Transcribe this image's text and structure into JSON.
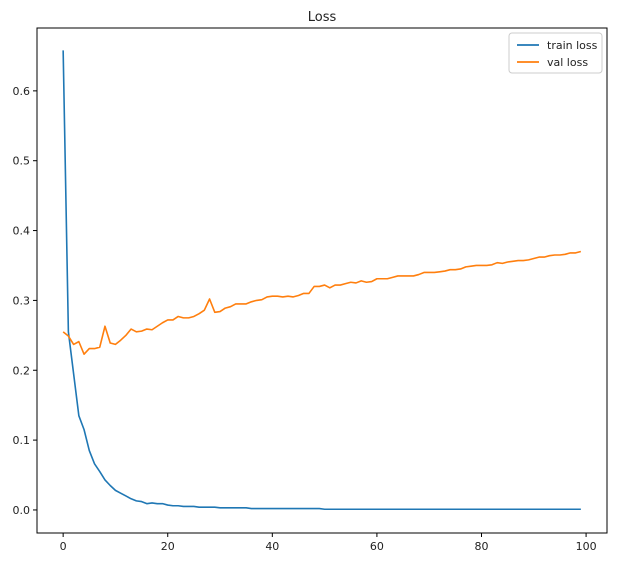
{
  "chart_data": {
    "type": "line",
    "title": "Loss",
    "xlabel": "",
    "ylabel": "",
    "xlim": [
      -5,
      104
    ],
    "ylim": [
      -0.033,
      0.69
    ],
    "xticks": [
      0,
      20,
      40,
      60,
      80,
      100
    ],
    "xtick_labels": [
      "0",
      "20",
      "40",
      "60",
      "80",
      "100"
    ],
    "yticks": [
      0.0,
      0.1,
      0.2,
      0.3,
      0.4,
      0.5,
      0.6
    ],
    "ytick_labels": [
      "0.0",
      "0.1",
      "0.2",
      "0.3",
      "0.4",
      "0.5",
      "0.6"
    ],
    "grid": false,
    "legend_position": "top-right",
    "series": [
      {
        "name": "train loss",
        "color": "#1f77b4",
        "x": [
          0,
          1,
          2,
          3,
          4,
          5,
          6,
          7,
          8,
          9,
          10,
          11,
          12,
          13,
          14,
          15,
          16,
          17,
          18,
          19,
          20,
          21,
          22,
          23,
          24,
          25,
          26,
          27,
          28,
          29,
          30,
          31,
          32,
          33,
          34,
          35,
          36,
          37,
          38,
          39,
          40,
          41,
          42,
          43,
          44,
          45,
          46,
          47,
          48,
          49,
          50,
          51,
          52,
          53,
          54,
          55,
          56,
          57,
          58,
          59,
          60,
          61,
          62,
          63,
          64,
          65,
          66,
          67,
          68,
          69,
          70,
          71,
          72,
          73,
          74,
          75,
          76,
          77,
          78,
          79,
          80,
          81,
          82,
          83,
          84,
          85,
          86,
          87,
          88,
          89,
          90,
          91,
          92,
          93,
          94,
          95,
          96,
          97,
          98,
          99
        ],
        "values": [
          0.658,
          0.255,
          0.195,
          0.135,
          0.115,
          0.085,
          0.066,
          0.055,
          0.043,
          0.035,
          0.028,
          0.024,
          0.02,
          0.016,
          0.013,
          0.012,
          0.009,
          0.01,
          0.009,
          0.009,
          0.007,
          0.006,
          0.006,
          0.005,
          0.005,
          0.005,
          0.004,
          0.004,
          0.004,
          0.004,
          0.003,
          0.003,
          0.003,
          0.003,
          0.003,
          0.003,
          0.002,
          0.002,
          0.002,
          0.002,
          0.002,
          0.002,
          0.002,
          0.002,
          0.002,
          0.002,
          0.002,
          0.002,
          0.002,
          0.002,
          0.001,
          0.001,
          0.001,
          0.001,
          0.001,
          0.001,
          0.001,
          0.001,
          0.001,
          0.001,
          0.001,
          0.001,
          0.001,
          0.001,
          0.001,
          0.001,
          0.001,
          0.001,
          0.001,
          0.001,
          0.001,
          0.001,
          0.001,
          0.001,
          0.001,
          0.001,
          0.001,
          0.001,
          0.001,
          0.001,
          0.001,
          0.001,
          0.001,
          0.001,
          0.001,
          0.001,
          0.001,
          0.001,
          0.001,
          0.001,
          0.001,
          0.001,
          0.001,
          0.001,
          0.001,
          0.001,
          0.001,
          0.001,
          0.001,
          0.001
        ]
      },
      {
        "name": "val loss",
        "color": "#ff7f0e",
        "x": [
          0,
          1,
          2,
          3,
          4,
          5,
          6,
          7,
          8,
          9,
          10,
          11,
          12,
          13,
          14,
          15,
          16,
          17,
          18,
          19,
          20,
          21,
          22,
          23,
          24,
          25,
          26,
          27,
          28,
          29,
          30,
          31,
          32,
          33,
          34,
          35,
          36,
          37,
          38,
          39,
          40,
          41,
          42,
          43,
          44,
          45,
          46,
          47,
          48,
          49,
          50,
          51,
          52,
          53,
          54,
          55,
          56,
          57,
          58,
          59,
          60,
          61,
          62,
          63,
          64,
          65,
          66,
          67,
          68,
          69,
          70,
          71,
          72,
          73,
          74,
          75,
          76,
          77,
          78,
          79,
          80,
          81,
          82,
          83,
          84,
          85,
          86,
          87,
          88,
          89,
          90,
          91,
          92,
          93,
          94,
          95,
          96,
          97,
          98,
          99
        ],
        "values": [
          0.255,
          0.249,
          0.237,
          0.241,
          0.223,
          0.231,
          0.231,
          0.233,
          0.263,
          0.239,
          0.237,
          0.243,
          0.25,
          0.259,
          0.255,
          0.256,
          0.259,
          0.258,
          0.263,
          0.268,
          0.272,
          0.272,
          0.277,
          0.275,
          0.275,
          0.277,
          0.281,
          0.286,
          0.302,
          0.283,
          0.284,
          0.289,
          0.291,
          0.295,
          0.295,
          0.295,
          0.298,
          0.3,
          0.301,
          0.305,
          0.306,
          0.306,
          0.305,
          0.306,
          0.305,
          0.307,
          0.31,
          0.31,
          0.32,
          0.32,
          0.322,
          0.318,
          0.322,
          0.322,
          0.324,
          0.326,
          0.325,
          0.328,
          0.326,
          0.327,
          0.331,
          0.331,
          0.331,
          0.333,
          0.335,
          0.335,
          0.335,
          0.335,
          0.337,
          0.34,
          0.34,
          0.34,
          0.341,
          0.342,
          0.344,
          0.344,
          0.345,
          0.348,
          0.349,
          0.35,
          0.35,
          0.35,
          0.351,
          0.354,
          0.353,
          0.355,
          0.356,
          0.357,
          0.357,
          0.358,
          0.36,
          0.362,
          0.362,
          0.364,
          0.365,
          0.365,
          0.366,
          0.368,
          0.368,
          0.37
        ]
      }
    ]
  }
}
